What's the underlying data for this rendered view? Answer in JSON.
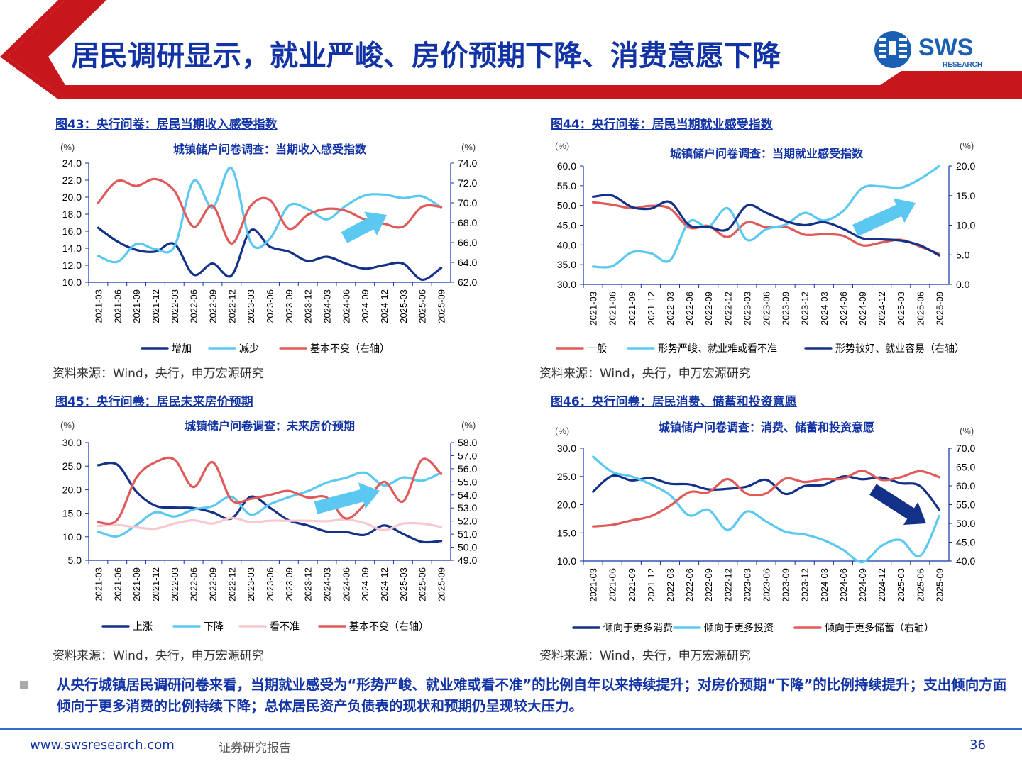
{
  "header": {
    "title": "居民调研显示，就业严峻、房价预期下降、消费意愿下降",
    "logo_text": "SWS",
    "logo_subtext": "RESEARCH",
    "colors": {
      "band_red": "#c8161d",
      "title_blue": "#1133a6",
      "logo_blue": "#1a5fb4"
    }
  },
  "charts": [
    {
      "caption": "图43：央行问卷：居民当期收入感受指数",
      "source": "资料来源：Wind，央行，申万宏源研究",
      "chart_data": {
        "type": "line",
        "title": "城镇储户问卷调查：当期收入感受指数",
        "ylabel_left_unit": "(%)",
        "ylabel_right_unit": "(%)",
        "categories": [
          "2021-03",
          "2021-06",
          "2021-09",
          "2021-12",
          "2022-03",
          "2022-06",
          "2022-09",
          "2022-12",
          "2023-03",
          "2023-06",
          "2023-09",
          "2023-12",
          "2024-03",
          "2024-06",
          "2024-09",
          "2024-12",
          "2025-03",
          "2025-06",
          "2025-09"
        ],
        "y_left": {
          "min": 10,
          "max": 24,
          "ticks": [
            "10.0",
            "12.0",
            "14.0",
            "16.0",
            "18.0",
            "20.0",
            "22.0",
            "24.0"
          ]
        },
        "y_right": {
          "min": 62,
          "max": 74,
          "ticks": [
            "62.0",
            "64.0",
            "66.0",
            "68.0",
            "70.0",
            "72.0",
            "74.0"
          ]
        },
        "series": [
          {
            "name": "增加",
            "axis": "left",
            "color": "#14318a",
            "values": [
              16.4,
              14.8,
              13.8,
              13.6,
              14.5,
              10.9,
              12.2,
              10.8,
              16.1,
              14.2,
              13.6,
              12.5,
              13.0,
              12.2,
              11.6,
              12.0,
              12.2,
              10.3,
              11.7
            ]
          },
          {
            "name": "减少",
            "axis": "left",
            "color": "#5ac8f0",
            "values": [
              13.1,
              12.4,
              14.5,
              13.9,
              14.2,
              21.9,
              18.8,
              23.4,
              14.7,
              15.1,
              19.0,
              18.6,
              17.4,
              19.0,
              20.2,
              20.3,
              19.9,
              20.1,
              18.8
            ]
          },
          {
            "name": "基本不变（右轴）",
            "axis": "right",
            "color": "#e05a5a",
            "values": [
              70.0,
              72.2,
              71.7,
              72.4,
              71.2,
              67.6,
              69.7,
              65.9,
              69.7,
              70.3,
              67.4,
              68.8,
              69.4,
              69.2,
              68.3,
              67.9,
              67.6,
              69.6,
              69.6
            ]
          }
        ],
        "annotation": "trend-arrow-up",
        "grid": false,
        "legend_position": "bottom"
      }
    },
    {
      "caption": "图44：央行问卷：居民当期就业感受指数",
      "source": "资料来源：Wind，央行，申万宏源研究",
      "chart_data": {
        "type": "line",
        "title": "城镇储户问卷调查：当期就业感受指数",
        "ylabel_left_unit": "(%)",
        "ylabel_right_unit": "(%)",
        "categories": [
          "2021-03",
          "2021-06",
          "2021-09",
          "2021-12",
          "2022-03",
          "2022-06",
          "2022-09",
          "2022-12",
          "2023-03",
          "2023-06",
          "2023-09",
          "2023-12",
          "2024-03",
          "2024-06",
          "2024-09",
          "2024-12",
          "2025-03",
          "2025-06",
          "2025-09"
        ],
        "y_left": {
          "min": 30,
          "max": 60,
          "ticks": [
            "30.0",
            "35.0",
            "40.0",
            "45.0",
            "50.0",
            "55.0",
            "60.0"
          ]
        },
        "y_right": {
          "min": 0,
          "max": 20,
          "ticks": [
            "0.0",
            "5.0",
            "10.0",
            "15.0",
            "20.0"
          ]
        },
        "series": [
          {
            "name": "一般",
            "axis": "left",
            "color": "#e05a5a",
            "values": [
              50.8,
              50.2,
              49.3,
              49.9,
              49.2,
              44.4,
              44.8,
              42.0,
              45.7,
              44.5,
              44.6,
              42.6,
              42.7,
              42.3,
              39.9,
              40.6,
              41.3,
              39.6,
              37.7
            ]
          },
          {
            "name": "形势严峻、就业难或看不准",
            "axis": "left",
            "color": "#5ac8f0",
            "values": [
              34.5,
              34.6,
              38.1,
              37.9,
              36.1,
              45.9,
              44.6,
              49.3,
              41.3,
              44.0,
              45.1,
              48.1,
              46.2,
              48.6,
              54.4,
              54.8,
              54.5,
              56.7,
              60.0
            ]
          },
          {
            "name": "形势较好、就业容易（右轴）",
            "axis": "right",
            "color": "#14318a",
            "values": [
              14.8,
              15.0,
              13.1,
              12.8,
              13.9,
              10.0,
              9.7,
              9.3,
              13.3,
              12.1,
              10.7,
              10.0,
              10.5,
              9.4,
              7.8,
              7.6,
              7.4,
              6.6,
              4.9
            ]
          }
        ],
        "annotation": "trend-arrow-up",
        "grid": false,
        "legend_position": "bottom"
      }
    },
    {
      "caption": "图45：央行问卷：居民未来房价预期",
      "source": "资料来源：Wind，央行，申万宏源研究",
      "chart_data": {
        "type": "line",
        "title": "城镇储户问卷调查：未来房价预期",
        "ylabel_left_unit": "(%)",
        "ylabel_right_unit": "(%)",
        "categories": [
          "2021-03",
          "2021-06",
          "2021-09",
          "2021-12",
          "2022-03",
          "2022-06",
          "2022-09",
          "2022-12",
          "2023-03",
          "2023-06",
          "2023-09",
          "2023-12",
          "2024-03",
          "2024-06",
          "2024-09",
          "2024-12",
          "2025-03",
          "2025-06",
          "2025-09"
        ],
        "y_left": {
          "min": 5,
          "max": 30,
          "ticks": [
            "5.0",
            "10.0",
            "15.0",
            "20.0",
            "25.0",
            "30.0"
          ]
        },
        "y_right": {
          "min": 49,
          "max": 58,
          "ticks": [
            "49.0",
            "50.0",
            "51.0",
            "52.0",
            "53.0",
            "54.0",
            "55.0",
            "56.0",
            "57.0",
            "58.0"
          ]
        },
        "series": [
          {
            "name": "上涨",
            "axis": "left",
            "color": "#14318a",
            "values": [
              25.2,
              25.3,
              19.6,
              16.6,
              16.2,
              16.1,
              15.2,
              13.9,
              18.5,
              16.2,
              13.5,
              12.4,
              11.1,
              11.0,
              10.4,
              12.4,
              10.6,
              8.9,
              9.1
            ]
          },
          {
            "name": "下降",
            "axis": "left",
            "color": "#5ac8f0",
            "values": [
              11.1,
              10.1,
              12.5,
              15.2,
              14.3,
              15.8,
              16.5,
              18.5,
              14.7,
              16.9,
              18.4,
              19.7,
              21.5,
              22.5,
              23.6,
              20.9,
              22.6,
              21.9,
              23.6
            ]
          },
          {
            "name": "看不准",
            "axis": "left",
            "color": "#f8c8d0",
            "values": [
              12.3,
              12.5,
              12.0,
              11.7,
              12.8,
              13.5,
              12.8,
              14.0,
              13.1,
              13.4,
              13.4,
              13.4,
              13.3,
              13.7,
              12.9,
              11.4,
              12.8,
              12.8,
              12.1
            ]
          },
          {
            "name": "基本不变（右轴）",
            "axis": "right",
            "color": "#e05a5a",
            "values": [
              51.9,
              52.1,
              55.3,
              56.5,
              56.7,
              54.6,
              56.5,
              53.6,
              53.7,
              54.0,
              54.3,
              53.8,
              53.8,
              52.2,
              53.3,
              55.0,
              53.5,
              56.7,
              55.6
            ]
          }
        ],
        "annotation": "trend-arrow-up",
        "grid": false,
        "legend_position": "bottom"
      }
    },
    {
      "caption": "图46：央行问卷：居民消费、储蓄和投资意愿",
      "source": "资料来源：Wind，央行，申万宏源研究",
      "chart_data": {
        "type": "line",
        "title": "城镇储户问卷调查：消费、储蓄和投资意愿",
        "ylabel_left_unit": "(%)",
        "ylabel_right_unit": "(%)",
        "categories": [
          "2021-03",
          "2021-06",
          "2021-09",
          "2021-12",
          "2022-03",
          "2022-06",
          "2022-09",
          "2022-12",
          "2023-03",
          "2023-06",
          "2023-09",
          "2023-12",
          "2024-03",
          "2024-06",
          "2024-09",
          "2024-12",
          "2025-03",
          "2025-06",
          "2025-09"
        ],
        "y_left": {
          "min": 10,
          "max": 30,
          "ticks": [
            "10.0",
            "15.0",
            "20.0",
            "25.0",
            "30.0"
          ]
        },
        "y_right": {
          "min": 40,
          "max": 70,
          "ticks": [
            "40.0",
            "45.0",
            "50.0",
            "55.0",
            "60.0",
            "65.0",
            "70.0"
          ]
        },
        "series": [
          {
            "name": "倾向于更多消费",
            "axis": "left",
            "color": "#14318a",
            "values": [
              22.3,
              25.1,
              24.3,
              24.7,
              23.7,
              23.6,
              22.7,
              22.8,
              23.2,
              24.4,
              21.9,
              23.3,
              23.5,
              25.0,
              24.5,
              24.8,
              23.8,
              23.3,
              19.1
            ]
          },
          {
            "name": "倾向于更多投资",
            "axis": "left",
            "color": "#5ac8f0",
            "values": [
              28.5,
              25.8,
              25.0,
              23.6,
              21.7,
              18.1,
              19.1,
              15.5,
              18.8,
              17.0,
              15.2,
              14.7,
              13.7,
              12.0,
              9.8,
              12.7,
              13.7,
              10.9,
              18.0
            ]
          },
          {
            "name": "倾向于更多储蓄（右轴）",
            "axis": "right",
            "color": "#e05a5a",
            "values": [
              49.2,
              49.6,
              50.8,
              51.9,
              54.7,
              58.3,
              58.3,
              61.8,
              57.9,
              58.0,
              61.9,
              61.0,
              61.8,
              61.9,
              64.0,
              61.6,
              62.3,
              63.9,
              62.3
            ]
          }
        ],
        "annotation": "trend-arrow-down",
        "grid": false,
        "legend_position": "bottom"
      }
    }
  ],
  "summary": "从央行城镇居民调研问卷来看，当期就业感受为“形势严峻、就业难或看不准”的比例自年以来持续提升；对房价预期“下降”的比例持续提升；支出倾向方面倾向于更多消费的比例持续下降；总体居民资产负债表的现状和预期仍呈现较大压力。",
  "footer": {
    "url": "www.swsresearch.com",
    "label": "证券研究报告",
    "page_number": "36"
  }
}
